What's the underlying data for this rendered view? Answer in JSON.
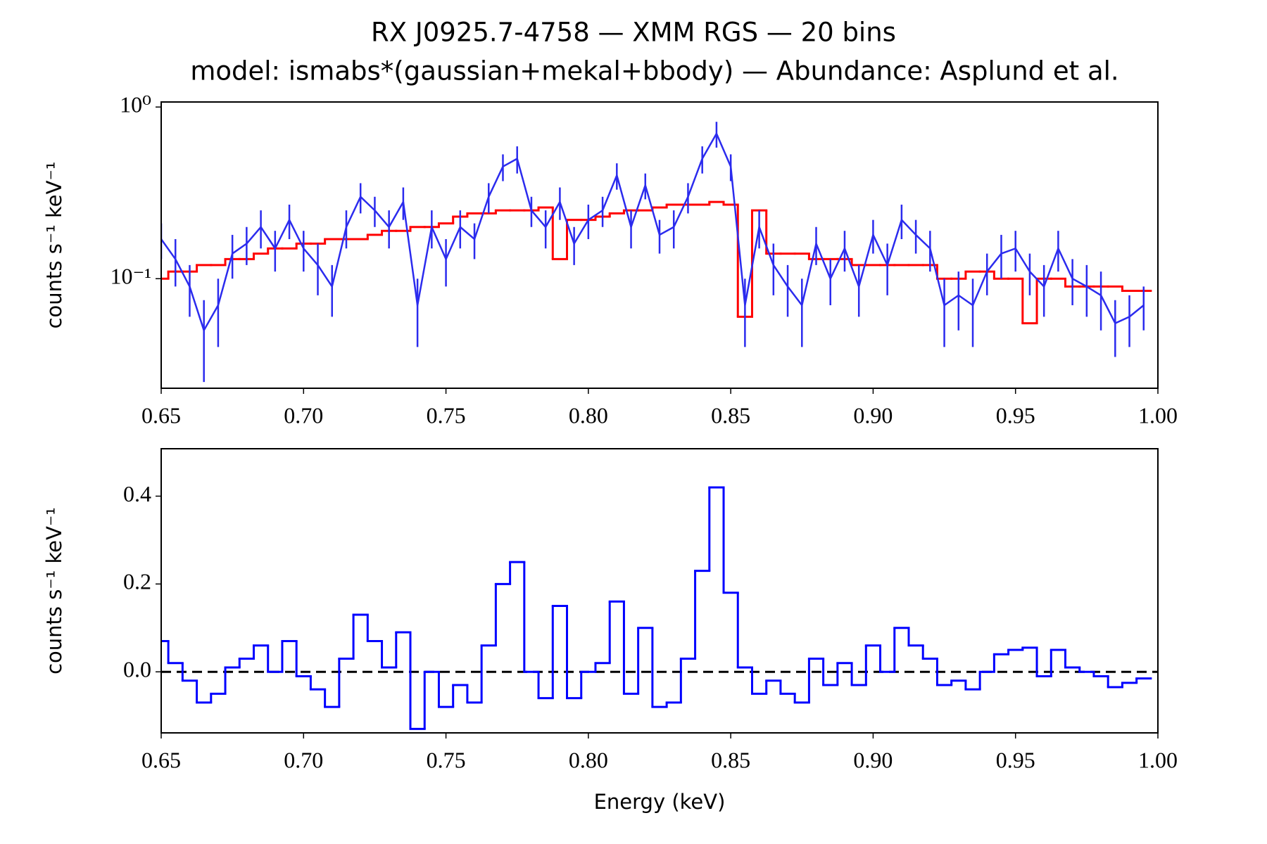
{
  "chart_data": [
    {
      "type": "line",
      "title": "RX J0925.7-4758 — XMM RGS — 20 bins",
      "subtitle": "model: ismabs*(gaussian+mekal+bbody) — Abundance: Asplund et al.",
      "ylabel": "counts s⁻¹ keV⁻¹",
      "yscale": "log",
      "xlim": [
        0.65,
        1.0
      ],
      "ylim": [
        0.023,
        1.07
      ],
      "xticks": [
        0.65,
        {
          "value": 0.7,
          "label": "0.70"
        },
        0.75,
        {
          "value": 0.8,
          "label": "0.80"
        },
        0.85,
        {
          "value": 0.9,
          "label": "0.90"
        },
        0.95,
        {
          "value": 1.0,
          "label": "1.00"
        }
      ],
      "yticks": [
        {
          "value": 0.1,
          "label": "10⁻¹"
        },
        {
          "value": 1,
          "label": "10⁰"
        }
      ],
      "x": [
        0.65,
        0.655,
        0.66,
        0.665,
        0.67,
        0.675,
        0.68,
        0.685,
        0.69,
        0.695,
        0.7,
        0.705,
        0.71,
        0.715,
        0.72,
        0.725,
        0.73,
        0.735,
        0.74,
        0.745,
        0.75,
        0.755,
        0.76,
        0.765,
        0.77,
        0.775,
        0.78,
        0.785,
        0.79,
        0.795,
        0.8,
        0.805,
        0.81,
        0.815,
        0.82,
        0.825,
        0.83,
        0.835,
        0.84,
        0.845,
        0.85,
        0.855,
        0.86,
        0.865,
        0.87,
        0.875,
        0.88,
        0.885,
        0.89,
        0.895,
        0.9,
        0.905,
        0.91,
        0.915,
        0.92,
        0.925,
        0.93,
        0.935,
        0.94,
        0.945,
        0.95,
        0.955,
        0.96,
        0.965,
        0.97,
        0.975,
        0.98,
        0.985,
        0.99,
        0.995
      ],
      "series": [
        {
          "style": "line",
          "color": "#2b2bee",
          "values": [
            0.17,
            0.13,
            0.09,
            0.05,
            0.07,
            0.14,
            0.16,
            0.2,
            0.15,
            0.22,
            0.15,
            0.12,
            0.09,
            0.2,
            0.3,
            0.25,
            0.2,
            0.28,
            0.07,
            0.2,
            0.13,
            0.2,
            0.17,
            0.3,
            0.45,
            0.5,
            0.25,
            0.2,
            0.28,
            0.16,
            0.22,
            0.25,
            0.4,
            0.2,
            0.35,
            0.18,
            0.2,
            0.3,
            0.5,
            0.7,
            0.45,
            0.07,
            0.2,
            0.12,
            0.09,
            0.07,
            0.16,
            0.1,
            0.15,
            0.09,
            0.18,
            0.12,
            0.22,
            0.18,
            0.15,
            0.07,
            0.08,
            0.07,
            0.11,
            0.14,
            0.15,
            0.11,
            0.09,
            0.15,
            0.1,
            0.09,
            0.08,
            0.055,
            0.06,
            0.07
          ],
          "errors": [
            0.04,
            0.04,
            0.03,
            0.025,
            0.03,
            0.04,
            0.04,
            0.05,
            0.04,
            0.05,
            0.04,
            0.04,
            0.03,
            0.05,
            0.06,
            0.05,
            0.05,
            0.06,
            0.03,
            0.05,
            0.04,
            0.05,
            0.04,
            0.06,
            0.08,
            0.09,
            0.05,
            0.05,
            0.06,
            0.04,
            0.05,
            0.05,
            0.07,
            0.05,
            0.06,
            0.04,
            0.05,
            0.06,
            0.09,
            0.12,
            0.08,
            0.03,
            0.05,
            0.04,
            0.03,
            0.03,
            0.04,
            0.03,
            0.04,
            0.03,
            0.04,
            0.04,
            0.05,
            0.04,
            0.04,
            0.03,
            0.03,
            0.03,
            0.03,
            0.04,
            0.04,
            0.03,
            0.03,
            0.04,
            0.03,
            0.03,
            0.03,
            0.02,
            0.02,
            0.02
          ]
        },
        {
          "style": "step",
          "color": "#ff0000",
          "values": [
            0.1,
            0.11,
            0.11,
            0.12,
            0.12,
            0.13,
            0.13,
            0.14,
            0.15,
            0.15,
            0.16,
            0.16,
            0.17,
            0.17,
            0.17,
            0.18,
            0.19,
            0.19,
            0.2,
            0.2,
            0.21,
            0.23,
            0.24,
            0.24,
            0.25,
            0.25,
            0.25,
            0.26,
            0.13,
            0.22,
            0.22,
            0.23,
            0.24,
            0.25,
            0.25,
            0.26,
            0.27,
            0.27,
            0.27,
            0.28,
            0.27,
            0.06,
            0.25,
            0.14,
            0.14,
            0.14,
            0.13,
            0.13,
            0.13,
            0.12,
            0.12,
            0.12,
            0.12,
            0.12,
            0.12,
            0.1,
            0.1,
            0.11,
            0.11,
            0.1,
            0.1,
            0.055,
            0.1,
            0.1,
            0.09,
            0.09,
            0.09,
            0.09,
            0.085,
            0.085
          ]
        }
      ]
    },
    {
      "type": "line",
      "ylabel": "counts s⁻¹ keV⁻¹",
      "xlabel": "Energy (keV)",
      "xlim": [
        0.65,
        1.0
      ],
      "ylim": [
        -0.139,
        0.508
      ],
      "xticks": [
        0.65,
        {
          "value": 0.7,
          "label": "0.70"
        },
        0.75,
        {
          "value": 0.8,
          "label": "0.80"
        },
        0.85,
        {
          "value": 0.9,
          "label": "0.90"
        },
        0.95,
        {
          "value": 1.0,
          "label": "1.00"
        }
      ],
      "yticks": [
        {
          "value": 0,
          "label": "0.0"
        },
        0.2,
        0.4
      ],
      "reference_line": {
        "value": 0,
        "color": "#000000",
        "dashed": true
      },
      "x": [
        0.65,
        0.655,
        0.66,
        0.665,
        0.67,
        0.675,
        0.68,
        0.685,
        0.69,
        0.695,
        0.7,
        0.705,
        0.71,
        0.715,
        0.72,
        0.725,
        0.73,
        0.735,
        0.74,
        0.745,
        0.75,
        0.755,
        0.76,
        0.765,
        0.77,
        0.775,
        0.78,
        0.785,
        0.79,
        0.795,
        0.8,
        0.805,
        0.81,
        0.815,
        0.82,
        0.825,
        0.83,
        0.835,
        0.84,
        0.845,
        0.85,
        0.855,
        0.86,
        0.865,
        0.87,
        0.875,
        0.88,
        0.885,
        0.89,
        0.895,
        0.9,
        0.905,
        0.91,
        0.915,
        0.92,
        0.925,
        0.93,
        0.935,
        0.94,
        0.945,
        0.95,
        0.955,
        0.96,
        0.965,
        0.97,
        0.975,
        0.98,
        0.985,
        0.99,
        0.995
      ],
      "series": [
        {
          "style": "step",
          "color": "#0000ff",
          "values": [
            0.07,
            0.02,
            -0.02,
            -0.07,
            -0.05,
            0.01,
            0.03,
            0.06,
            0,
            0.07,
            -0.01,
            -0.04,
            -0.08,
            0.03,
            0.13,
            0.07,
            0.01,
            0.09,
            -0.13,
            0,
            -0.08,
            -0.03,
            -0.07,
            0.06,
            0.2,
            0.25,
            0,
            -0.06,
            0.15,
            -0.06,
            0,
            0.02,
            0.16,
            -0.05,
            0.1,
            -0.08,
            -0.07,
            0.03,
            0.23,
            0.42,
            0.18,
            0.01,
            -0.05,
            -0.02,
            -0.05,
            -0.07,
            0.03,
            -0.03,
            0.02,
            -0.03,
            0.06,
            0,
            0.1,
            0.06,
            0.03,
            -0.03,
            -0.02,
            -0.04,
            0,
            0.04,
            0.05,
            0.055,
            -0.01,
            0.05,
            0.01,
            0,
            -0.01,
            -0.035,
            -0.025,
            -0.015
          ]
        }
      ]
    }
  ]
}
